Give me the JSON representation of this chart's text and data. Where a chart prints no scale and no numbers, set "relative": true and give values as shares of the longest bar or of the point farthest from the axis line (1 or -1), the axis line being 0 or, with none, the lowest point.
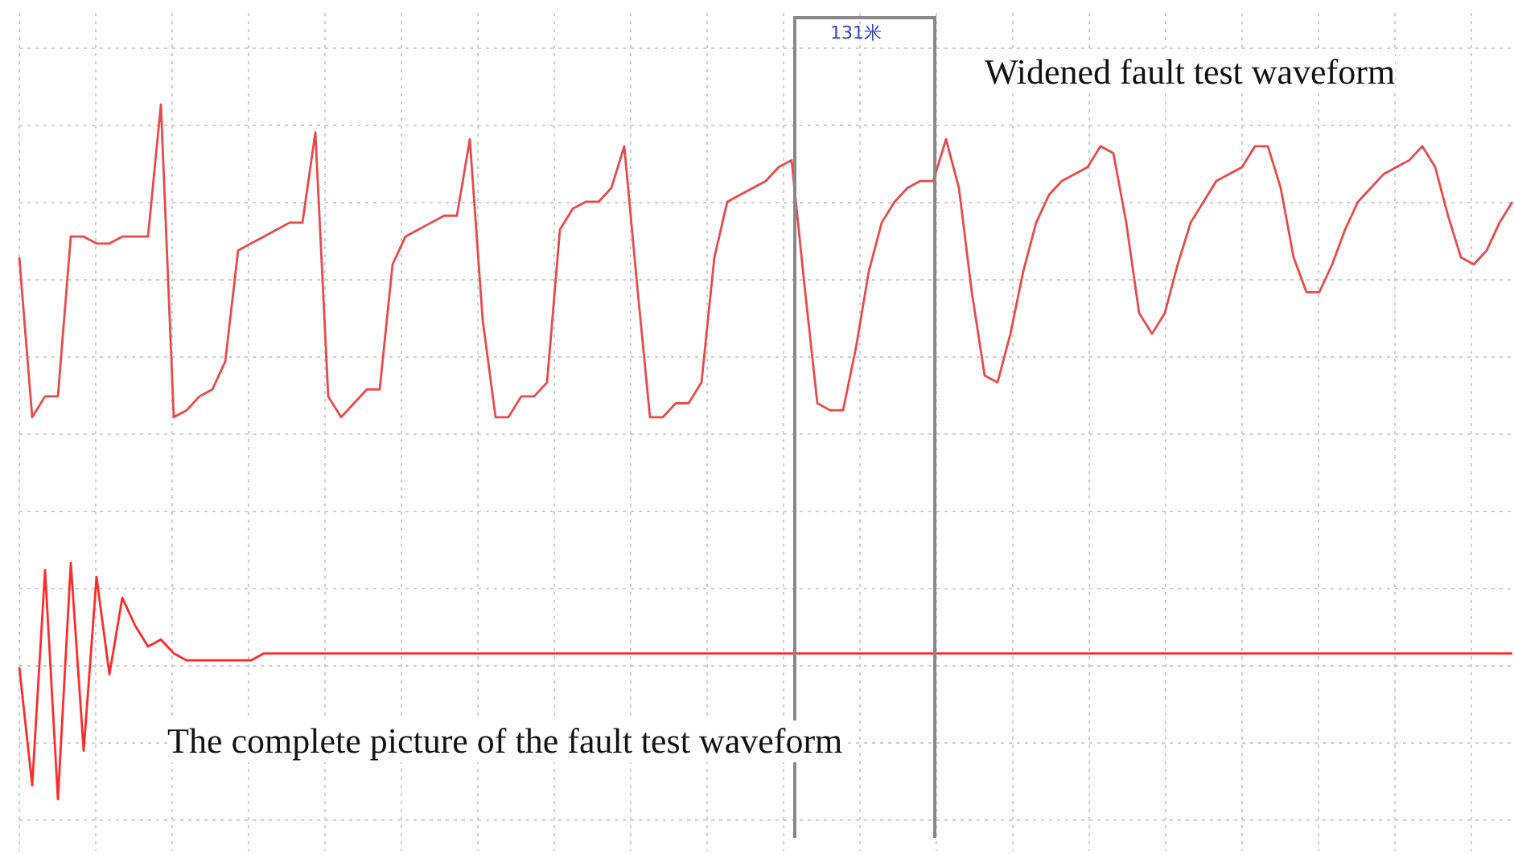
{
  "chart_data": {
    "type": "line",
    "relative": true,
    "grid": true,
    "legend": false,
    "marker": "none",
    "line_style": "solid",
    "annotations": [
      "131米",
      "Widened fault test waveform",
      "The complete picture of the fault test waveform"
    ],
    "categories": [
      null,
      null,
      null,
      null,
      null,
      null,
      null,
      null,
      null,
      null,
      null,
      null,
      null,
      null,
      null,
      null,
      null,
      null,
      null,
      null,
      null,
      null,
      null,
      null,
      null,
      null,
      null,
      null,
      null,
      null,
      null,
      null,
      null,
      null,
      null,
      null,
      null,
      null,
      null,
      null,
      null,
      null,
      null,
      null,
      null,
      null,
      null,
      null,
      null,
      null,
      null,
      null,
      null,
      null,
      null,
      null,
      null,
      null,
      null,
      null,
      null,
      null,
      null,
      null,
      null,
      null,
      null,
      null,
      null,
      null,
      null,
      null,
      null,
      null,
      null,
      null,
      null,
      null,
      null,
      null,
      null,
      null,
      null,
      null,
      null,
      null,
      null,
      null,
      null,
      null,
      null,
      null,
      null,
      null,
      null,
      null,
      null,
      null,
      null,
      null,
      null,
      null,
      null,
      null,
      null,
      null,
      null,
      null,
      null,
      null,
      null,
      null,
      null,
      null,
      null,
      null,
      null
    ],
    "series": [
      {
        "color": "#e84a4a",
        "values": [
          0.78,
          0.55,
          0.58,
          0.58,
          0.81,
          0.81,
          0.8,
          0.8,
          0.81,
          0.81,
          0.81,
          1,
          0.55,
          0.56,
          0.58,
          0.59,
          0.63,
          0.79,
          0.8,
          0.81,
          0.82,
          0.83,
          0.83,
          0.96,
          0.58,
          0.55,
          0.57,
          0.59,
          0.59,
          0.77,
          0.81,
          0.82,
          0.83,
          0.84,
          0.84,
          0.95,
          0.69,
          0.55,
          0.55,
          0.58,
          0.58,
          0.6,
          0.82,
          0.85,
          0.86,
          0.86,
          0.88,
          0.94,
          0.74,
          0.55,
          0.55,
          0.57,
          0.57,
          0.6,
          0.78,
          0.86,
          0.87,
          0.88,
          0.89,
          0.91,
          0.92,
          0.74,
          0.57,
          0.56,
          0.56,
          0.65,
          0.76,
          0.83,
          0.86,
          0.88,
          0.89,
          0.89,
          0.95,
          0.88,
          0.73,
          0.61,
          0.6,
          0.67,
          0.76,
          0.83,
          0.87,
          0.89,
          0.9,
          0.91,
          0.94,
          0.93,
          0.83,
          0.7,
          0.67,
          0.7,
          0.77,
          0.83,
          0.86,
          0.89,
          0.9,
          0.91,
          0.94,
          0.94,
          0.88,
          0.78,
          0.73,
          0.73,
          0.77,
          0.82,
          0.86,
          0.88,
          0.9,
          0.91,
          0.92,
          0.94,
          0.91,
          0.84,
          0.78,
          0.77,
          0.79,
          0.83,
          0.86
        ]
      },
      {
        "color": "#ff2a2a",
        "values": [
          0.19,
          0.02,
          0.33,
          0,
          0.34,
          0.07,
          0.32,
          0.18,
          0.29,
          0.25,
          0.22,
          0.23,
          0.21,
          0.2,
          0.2,
          0.2,
          0.2,
          0.2,
          0.2,
          0.21,
          0.21,
          0.21,
          0.21,
          0.21,
          0.21,
          0.21,
          0.21,
          0.21,
          0.21,
          0.21,
          0.21,
          0.21,
          0.21,
          0.21,
          0.21,
          0.21,
          0.21,
          0.21,
          0.21,
          0.21,
          0.21,
          0.21,
          0.21,
          0.21,
          0.21,
          0.21,
          0.21,
          0.21,
          0.21,
          0.21,
          0.21,
          0.21,
          0.21,
          0.21,
          0.21,
          0.21,
          0.21,
          0.21,
          0.21,
          0.21,
          0.21,
          0.21,
          0.21,
          0.21,
          0.21,
          0.21,
          0.21,
          0.21,
          0.21,
          0.21,
          0.21,
          0.21,
          0.21,
          0.21,
          0.21,
          0.21,
          0.21,
          0.21,
          0.21,
          0.21,
          0.21,
          0.21,
          0.21,
          0.21,
          0.21,
          0.21,
          0.21,
          0.21,
          0.21,
          0.21,
          0.21,
          0.21,
          0.21,
          0.21,
          0.21,
          0.21,
          0.21,
          0.21,
          0.21,
          0.21,
          0.21,
          0.21,
          0.21,
          0.21,
          0.21,
          0.21,
          0.21,
          0.21,
          0.21,
          0.21,
          0.21,
          0.21,
          0.21,
          0.21,
          0.21,
          0.21,
          0.21
        ]
      }
    ]
  }
}
